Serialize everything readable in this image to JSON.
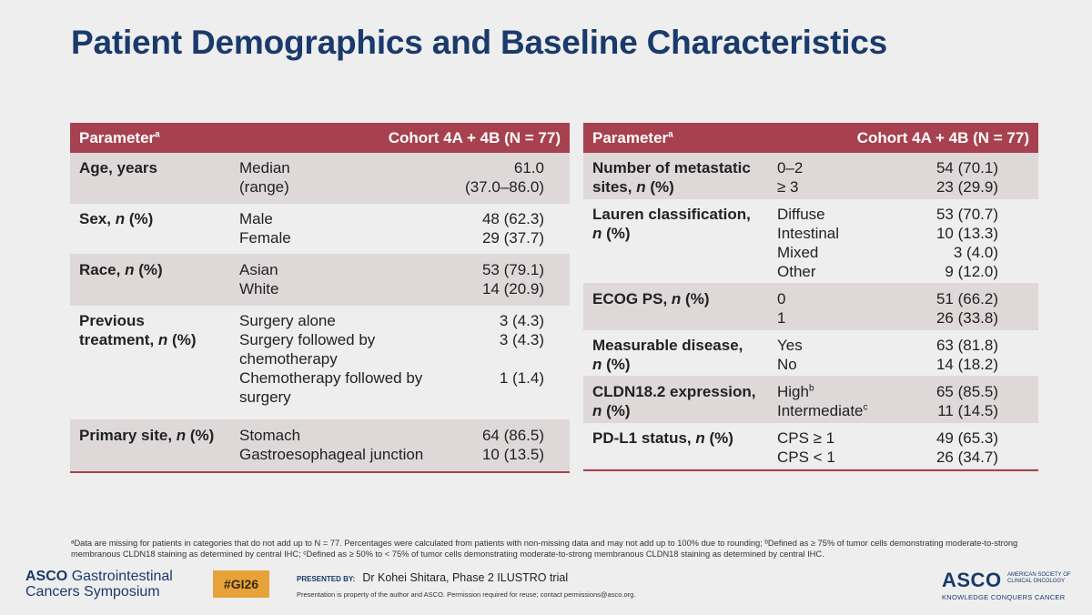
{
  "title": "Patient Demographics and Baseline Characteristics",
  "left_table": {
    "header_param": "Parameter",
    "header_sup": "a",
    "header_cohort": "Cohort 4A + 4B (N = 77)",
    "rows": [
      {
        "param": [
          "Age, years"
        ],
        "cats": [
          "Median",
          "(range)"
        ],
        "vals": [
          "61.0",
          "(37.0–86.0)"
        ]
      },
      {
        "param": [
          "Sex, n (%)"
        ],
        "cats": [
          "Male",
          "Female"
        ],
        "vals": [
          "48 (62.3)",
          "29 (37.7)"
        ]
      },
      {
        "param": [
          "Race, n (%)"
        ],
        "cats": [
          "Asian",
          "White"
        ],
        "vals": [
          "53 (79.1)",
          "14 (20.9)"
        ]
      },
      {
        "param": [
          "Previous",
          "treatment, n (%)"
        ],
        "cats": [
          "Surgery alone",
          "Surgery followed by",
          "chemotherapy",
          "Chemotherapy followed by",
          "surgery"
        ],
        "vals": [
          "3 (4.3)",
          "3 (4.3)",
          "",
          "1 (1.4)",
          ""
        ]
      },
      {
        "param": [
          "Primary site, n (%)"
        ],
        "cats": [
          "Stomach",
          "Gastroesophageal junction"
        ],
        "vals": [
          "64 (86.5)",
          "10 (13.5)"
        ]
      }
    ]
  },
  "right_table": {
    "header_param": "Parameter",
    "header_sup": "a",
    "header_cohort": "Cohort 4A + 4B (N = 77)",
    "rows": [
      {
        "param": [
          "Number of metastatic",
          "sites, n (%)"
        ],
        "cats": [
          "0–2",
          "≥ 3"
        ],
        "vals": [
          "54 (70.1)",
          "23 (29.9)"
        ]
      },
      {
        "param": [
          "Lauren classification,",
          "n (%)"
        ],
        "cats": [
          "Diffuse",
          "Intestinal",
          "Mixed",
          "Other"
        ],
        "vals": [
          "53 (70.7)",
          "10 (13.3)",
          "3 (4.0)",
          "9 (12.0)"
        ]
      },
      {
        "param": [
          "ECOG PS, n (%)"
        ],
        "cats": [
          "0",
          "1"
        ],
        "vals": [
          "51 (66.2)",
          "26 (33.8)"
        ]
      },
      {
        "param": [
          "Measurable disease,",
          "n (%)"
        ],
        "cats": [
          "Yes",
          "No"
        ],
        "vals": [
          "63 (81.8)",
          "14 (18.2)"
        ]
      },
      {
        "param": [
          "CLDN18.2 expression,",
          "n (%)"
        ],
        "cats": [
          "High",
          "Intermediate"
        ],
        "cat_sups": [
          "b",
          "c"
        ],
        "vals": [
          "65 (85.5)",
          "11 (14.5)"
        ]
      },
      {
        "param": [
          "PD-L1 status, n (%)"
        ],
        "cats": [
          "CPS ≥ 1",
          "CPS < 1"
        ],
        "vals": [
          "49 (65.3)",
          "26 (34.7)"
        ]
      }
    ]
  },
  "footnote": "ᵃData are missing for patients in categories that do not add up to N = 77. Percentages were calculated from patients with non-missing data and may not add up to 100% due to rounding; ᵇDefined as ≥ 75% of tumor cells demonstrating moderate-to-strong membranous CLDN18 staining as determined by central IHC; ᶜDefined as ≥ 50% to < 75% of tumor cells demonstrating moderate-to-strong membranous CLDN18 staining as determined by central IHC.",
  "footer": {
    "asco_word": "ASCO",
    "gi_line1": "Gastrointestinal",
    "gi_line2": "Cancers Symposium",
    "hashtag": "#GI26",
    "presented_label": "PRESENTED BY:",
    "presenter": "Dr Kohei Shitara, Phase 2 ILUSTRO trial",
    "property": "Presentation is property of the author and ASCO. Permission required for reuse; contact permissions@asco.org.",
    "logo_text": "ASCO",
    "logo_small": "AMERICAN SOCIETY OF CLINICAL ONCOLOGY",
    "logo_tagline": "KNOWLEDGE CONQUERS CANCER"
  },
  "colors": {
    "header": "#a8414f",
    "title": "#1a3a6b",
    "shade": "#ded8d9",
    "hashtag": "#e8a23a"
  }
}
